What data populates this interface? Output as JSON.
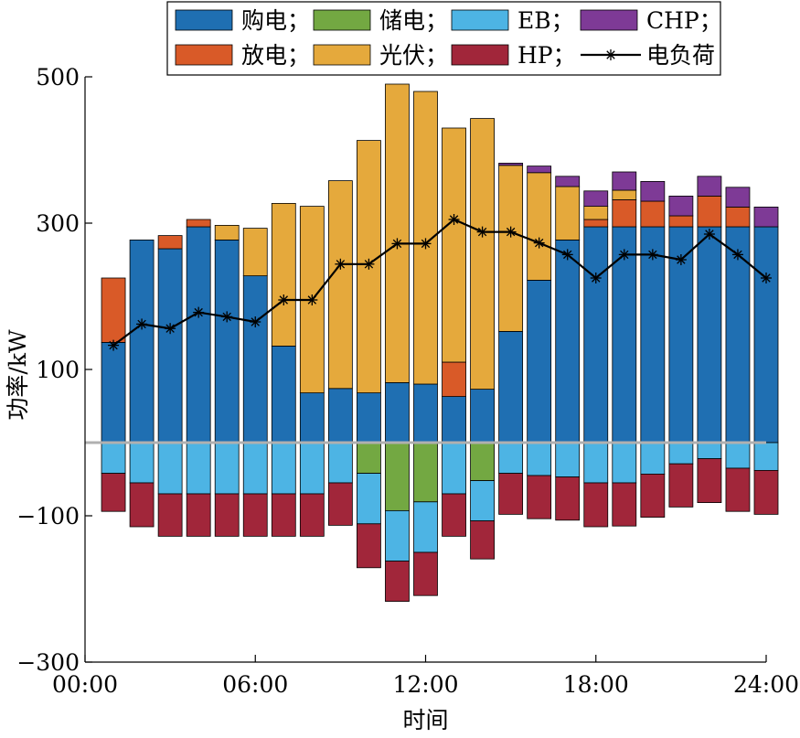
{
  "chart_data": {
    "type": "bar",
    "stacked": true,
    "xlabel": "时间",
    "ylabel": "功率/kW",
    "xticks": [
      "00:00",
      "06:00",
      "12:00",
      "18:00",
      "24:00"
    ],
    "xrange": [
      0,
      24
    ],
    "yticks": [
      "-300",
      "-100",
      "100",
      "300",
      "500"
    ],
    "ylim": [
      -300,
      500
    ],
    "zero_line": true,
    "x": [
      1,
      2,
      3,
      4,
      5,
      6,
      7,
      8,
      9,
      10,
      11,
      12,
      13,
      14,
      15,
      16,
      17,
      18,
      19,
      20,
      21,
      22,
      23,
      24
    ],
    "legend": {
      "placement": "top",
      "entries": [
        {
          "label": "购电；",
          "color": "#1F6FB2",
          "kind": "bar"
        },
        {
          "label": "储电；",
          "color": "#73A842",
          "kind": "bar"
        },
        {
          "label": "EB；",
          "color": "#4DB4E4",
          "kind": "bar"
        },
        {
          "label": "CHP；",
          "color": "#7E3A96",
          "kind": "bar"
        },
        {
          "label": "放电；",
          "color": "#D95A28",
          "kind": "bar"
        },
        {
          "label": "光伏；",
          "color": "#E5A93C",
          "kind": "bar"
        },
        {
          "label": "HP；",
          "color": "#A1263A",
          "kind": "bar"
        },
        {
          "label": "电负荷",
          "color": "#000000",
          "kind": "line"
        }
      ]
    },
    "positive_series": [
      {
        "name": "购电",
        "color": "#1F6FB2",
        "values": [
          137,
          277,
          265,
          295,
          277,
          228,
          132,
          68,
          74,
          68,
          82,
          80,
          63,
          73,
          152,
          222,
          277,
          295,
          295,
          295,
          295,
          295,
          295,
          295
        ]
      },
      {
        "name": "放电",
        "color": "#D95A28",
        "values": [
          88,
          0,
          18,
          10,
          0,
          0,
          0,
          0,
          0,
          0,
          0,
          0,
          47,
          0,
          0,
          0,
          0,
          10,
          37,
          35,
          15,
          42,
          27,
          0
        ]
      },
      {
        "name": "光伏",
        "color": "#E5A93C",
        "values": [
          0,
          0,
          0,
          0,
          20,
          65,
          195,
          255,
          284,
          345,
          408,
          400,
          320,
          370,
          227,
          147,
          73,
          18,
          13,
          0,
          0,
          0,
          0,
          0
        ]
      },
      {
        "name": "CHP",
        "color": "#7E3A96",
        "values": [
          0,
          0,
          0,
          0,
          0,
          0,
          0,
          0,
          0,
          0,
          0,
          0,
          0,
          0,
          3,
          9,
          14,
          21,
          25,
          27,
          27,
          27,
          27,
          27
        ]
      }
    ],
    "negative_series": [
      {
        "name": "储电",
        "color": "#73A842",
        "values": [
          0,
          0,
          0,
          0,
          0,
          0,
          0,
          0,
          0,
          -42,
          -93,
          -81,
          0,
          -52,
          0,
          0,
          0,
          0,
          0,
          0,
          0,
          0,
          0,
          0
        ]
      },
      {
        "name": "EB",
        "color": "#4DB4E4",
        "values": [
          -42,
          -55,
          -70,
          -70,
          -70,
          -70,
          -70,
          -70,
          -55,
          -69,
          -69,
          -69,
          -70,
          -55,
          -42,
          -45,
          -47,
          -55,
          -55,
          -43,
          -29,
          -22,
          -35,
          -38
        ]
      },
      {
        "name": "HP",
        "color": "#A1263A",
        "values": [
          -52,
          -60,
          -58,
          -58,
          -58,
          -58,
          -58,
          -58,
          -58,
          -60,
          -55,
          -59,
          -58,
          -52,
          -56,
          -59,
          -59,
          -60,
          -59,
          -59,
          -59,
          -60,
          -59,
          -60
        ]
      }
    ],
    "load": {
      "name": "电负荷",
      "color": "#000000",
      "marker": "asterisk",
      "values": [
        133,
        162,
        156,
        178,
        172,
        165,
        195,
        195,
        244,
        244,
        272,
        272,
        305,
        288,
        288,
        273,
        257,
        225,
        257,
        257,
        250,
        285,
        257,
        225
      ]
    }
  }
}
